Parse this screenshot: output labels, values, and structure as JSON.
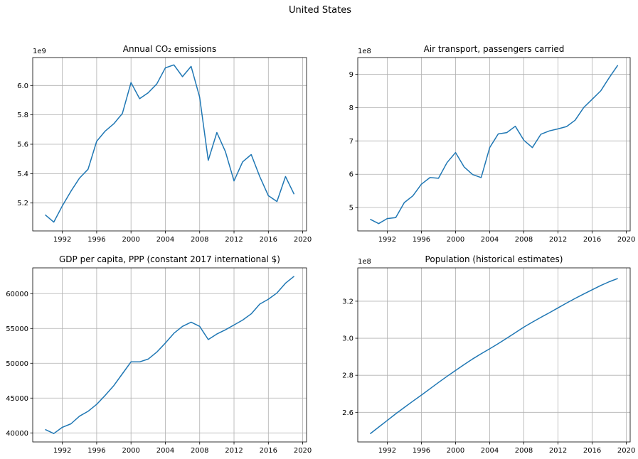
{
  "figure": {
    "title": "United States"
  },
  "style": {
    "line_color": "#1f77b4",
    "grid_color": "#b0b0b0",
    "axis_color": "#000000"
  },
  "chart_data": [
    {
      "type": "line",
      "title": "Annual CO₂ emissions",
      "xlabel": "",
      "ylabel": "",
      "grid": true,
      "xlim": [
        1988.55,
        2020.45
      ],
      "ylim": [
        5.01,
        6.19
      ],
      "y_offset": "1e9",
      "y_scale": 1000000000,
      "xticks": [
        1992,
        1996,
        2000,
        2004,
        2008,
        2012,
        2016,
        2020
      ],
      "yticks": [
        5.2,
        5.4,
        5.6,
        5.8,
        6.0
      ],
      "ytick_labels": [
        "5.2",
        "5.4",
        "5.6",
        "5.8",
        "6.0"
      ],
      "x": [
        1990,
        1991,
        1992,
        1993,
        1994,
        1995,
        1996,
        1997,
        1998,
        1999,
        2000,
        2001,
        2002,
        2003,
        2004,
        2005,
        2006,
        2007,
        2008,
        2009,
        2010,
        2011,
        2012,
        2013,
        2014,
        2015,
        2016,
        2017,
        2018,
        2019
      ],
      "series": [
        {
          "values": [
            5.12,
            5.07,
            5.18,
            5.28,
            5.37,
            5.43,
            5.62,
            5.69,
            5.74,
            5.81,
            6.02,
            5.91,
            5.95,
            6.01,
            6.12,
            6.14,
            6.06,
            6.13,
            5.92,
            5.49,
            5.68,
            5.55,
            5.35,
            5.48,
            5.53,
            5.38,
            5.25,
            5.21,
            5.38,
            5.26
          ]
        }
      ]
    },
    {
      "type": "line",
      "title": "Air transport, passengers carried",
      "xlabel": "",
      "ylabel": "",
      "grid": true,
      "xlim": [
        1988.55,
        2020.45
      ],
      "ylim": [
        4.3,
        9.5
      ],
      "y_offset": "1e8",
      "y_scale": 100000000,
      "xticks": [
        1992,
        1996,
        2000,
        2004,
        2008,
        2012,
        2016,
        2020
      ],
      "yticks": [
        5,
        6,
        7,
        8,
        9
      ],
      "ytick_labels": [
        "5",
        "6",
        "7",
        "8",
        "9"
      ],
      "x": [
        1990,
        1991,
        1992,
        1993,
        1994,
        1995,
        1996,
        1997,
        1998,
        1999,
        2000,
        2001,
        2002,
        2003,
        2004,
        2005,
        2006,
        2007,
        2008,
        2009,
        2010,
        2011,
        2012,
        2013,
        2014,
        2015,
        2016,
        2017,
        2018,
        2019
      ],
      "series": [
        {
          "values": [
            4.65,
            4.52,
            4.67,
            4.7,
            5.15,
            5.35,
            5.7,
            5.9,
            5.88,
            6.35,
            6.65,
            6.22,
            5.99,
            5.9,
            6.8,
            7.21,
            7.25,
            7.44,
            7.02,
            6.8,
            7.2,
            7.3,
            7.36,
            7.43,
            7.62,
            8.0,
            8.25,
            8.5,
            8.9,
            9.27
          ]
        }
      ]
    },
    {
      "type": "line",
      "title": "GDP per capita, PPP (constant 2017 international $)",
      "xlabel": "",
      "ylabel": "",
      "grid": true,
      "xlim": [
        1988.55,
        2020.45
      ],
      "ylim": [
        38700,
        63700
      ],
      "xticks": [
        1992,
        1996,
        2000,
        2004,
        2008,
        2012,
        2016,
        2020
      ],
      "yticks": [
        40000,
        45000,
        50000,
        55000,
        60000
      ],
      "ytick_labels": [
        "40000",
        "45000",
        "50000",
        "55000",
        "60000"
      ],
      "x": [
        1990,
        1991,
        1992,
        1993,
        1994,
        1995,
        1996,
        1997,
        1998,
        1999,
        2000,
        2001,
        2002,
        2003,
        2004,
        2005,
        2006,
        2007,
        2008,
        2009,
        2010,
        2011,
        2012,
        2013,
        2014,
        2015,
        2016,
        2017,
        2018,
        2019
      ],
      "series": [
        {
          "values": [
            40500,
            39900,
            40800,
            41300,
            42400,
            43100,
            44100,
            45400,
            46800,
            48500,
            50200,
            50200,
            50600,
            51600,
            52900,
            54300,
            55300,
            55900,
            55300,
            53400,
            54200,
            54800,
            55500,
            56200,
            57100,
            58500,
            59200,
            60100,
            61500,
            62500
          ]
        }
      ]
    },
    {
      "type": "line",
      "title": "Population (historical estimates)",
      "xlabel": "",
      "ylabel": "",
      "grid": true,
      "xlim": [
        1988.55,
        2020.45
      ],
      "ylim": [
        2.44,
        3.38
      ],
      "y_offset": "1e8",
      "y_scale": 100000000,
      "xticks": [
        1992,
        1996,
        2000,
        2004,
        2008,
        2012,
        2016,
        2020
      ],
      "yticks": [
        2.6,
        2.8,
        3.0,
        3.2
      ],
      "ytick_labels": [
        "2.6",
        "2.8",
        "3.0",
        "3.2"
      ],
      "x": [
        1990,
        1991,
        1992,
        1993,
        1994,
        1995,
        1996,
        1997,
        1998,
        1999,
        2000,
        2001,
        2002,
        2003,
        2004,
        2005,
        2006,
        2007,
        2008,
        2009,
        2010,
        2011,
        2012,
        2013,
        2014,
        2015,
        2016,
        2017,
        2018,
        2019
      ],
      "series": [
        {
          "values": [
            2.484,
            2.52,
            2.556,
            2.592,
            2.626,
            2.66,
            2.693,
            2.727,
            2.761,
            2.794,
            2.826,
            2.858,
            2.888,
            2.916,
            2.943,
            2.971,
            3.0,
            3.03,
            3.06,
            3.087,
            3.113,
            3.138,
            3.164,
            3.19,
            3.215,
            3.239,
            3.262,
            3.285,
            3.305,
            3.323
          ]
        }
      ]
    }
  ]
}
